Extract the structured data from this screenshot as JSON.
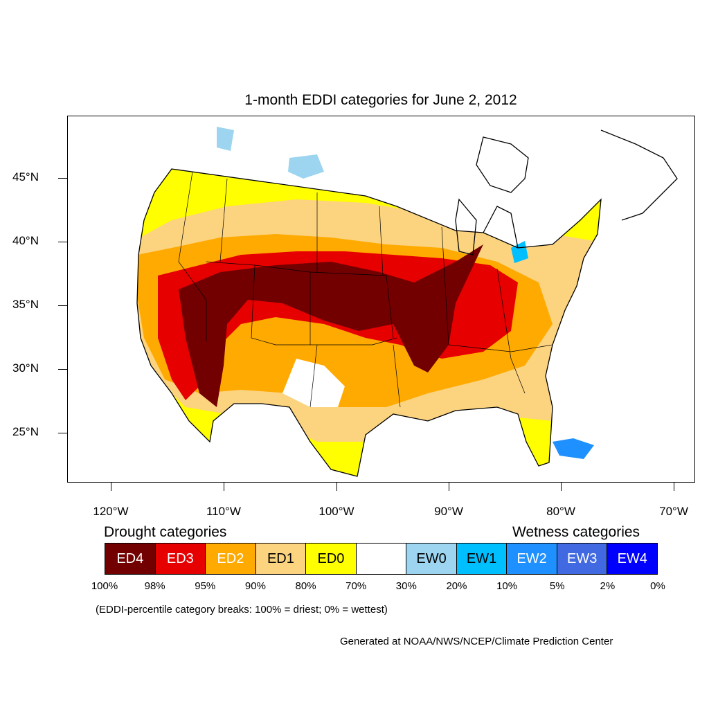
{
  "title": "1-month EDDI categories for June 2, 2012",
  "lat_labels": [
    "45°N",
    "40°N",
    "35°N",
    "30°N",
    "25°N"
  ],
  "lon_labels": [
    "120°W",
    "110°W",
    "100°W",
    "90°W",
    "80°W",
    "70°W"
  ],
  "legend": {
    "drought_heading": "Drought categories",
    "wetness_heading": "Wetness categories",
    "categories": [
      {
        "label": "ED4",
        "color": "#730000",
        "text_color": "#ffffff"
      },
      {
        "label": "ED3",
        "color": "#e60000",
        "text_color": "#ffffff"
      },
      {
        "label": "ED2",
        "color": "#ffaa00",
        "text_color": "#ffffff"
      },
      {
        "label": "ED1",
        "color": "#fcd37f",
        "text_color": "#000000"
      },
      {
        "label": "ED0",
        "color": "#ffff00",
        "text_color": "#000000"
      },
      {
        "label": "",
        "color": "#ffffff",
        "text_color": "#000000"
      },
      {
        "label": "EW0",
        "color": "#9dd5f0",
        "text_color": "#000000"
      },
      {
        "label": "EW1",
        "color": "#00bfff",
        "text_color": "#000000"
      },
      {
        "label": "EW2",
        "color": "#1e90ff",
        "text_color": "#ffffff"
      },
      {
        "label": "EW3",
        "color": "#4169e1",
        "text_color": "#ffffff"
      },
      {
        "label": "EW4",
        "color": "#0000ff",
        "text_color": "#ffffff"
      }
    ],
    "percentiles": [
      "100%",
      "98%",
      "95%",
      "90%",
      "80%",
      "70%",
      "30%",
      "20%",
      "10%",
      "5%",
      "2%",
      "0%"
    ]
  },
  "note": "(EDDI-percentile category breaks: 100% = driest; 0% = wettest)",
  "credit": "Generated at NOAA/NWS/NCEP/Climate Prediction Center"
}
